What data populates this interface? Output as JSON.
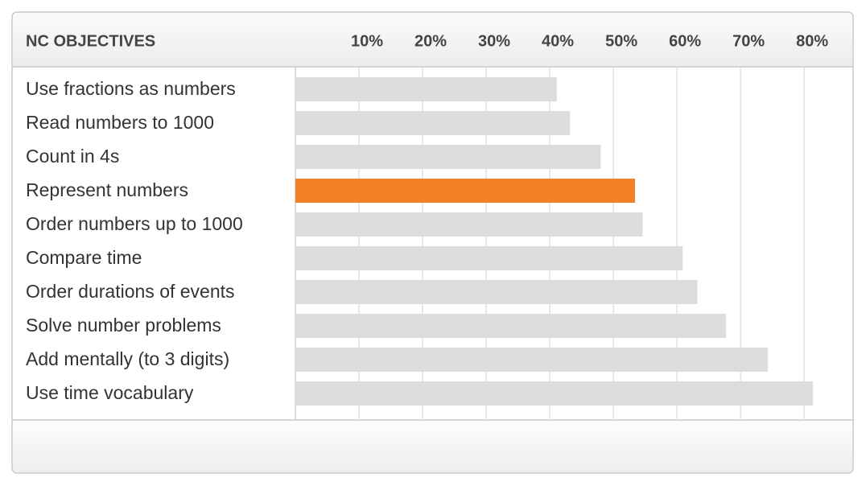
{
  "chart_data": {
    "type": "bar",
    "orientation": "horizontal",
    "header": "NC OBJECTIVES",
    "categories": [
      "Use fractions as numbers",
      "Read numbers to 1000",
      "Count in 4s",
      "Represent numbers",
      "Order numbers up to 1000",
      "Compare time",
      "Order durations of events",
      "Solve number problems",
      "Add mentally (to 3 digits)",
      "Use time vocabulary"
    ],
    "values": [
      41.1,
      43.2,
      48.0,
      53.4,
      54.6,
      60.9,
      63.2,
      67.7,
      74.3,
      81.4
    ],
    "colors": [
      "#dcdcdc",
      "#dcdcdc",
      "#dcdcdc",
      "#f28026",
      "#dcdcdc",
      "#dcdcdc",
      "#dcdcdc",
      "#dcdcdc",
      "#dcdcdc",
      "#dcdcdc"
    ],
    "xlim": [
      0,
      87.7
    ],
    "xticks": [
      {
        "value": 10,
        "label": "10%"
      },
      {
        "value": 20,
        "label": "20%"
      },
      {
        "value": 30,
        "label": "30%"
      },
      {
        "value": 40,
        "label": "40%"
      },
      {
        "value": 50,
        "label": "50%"
      },
      {
        "value": 60,
        "label": "60%"
      },
      {
        "value": 70,
        "label": "70%"
      },
      {
        "value": 80,
        "label": "80%"
      }
    ],
    "grid": true
  }
}
